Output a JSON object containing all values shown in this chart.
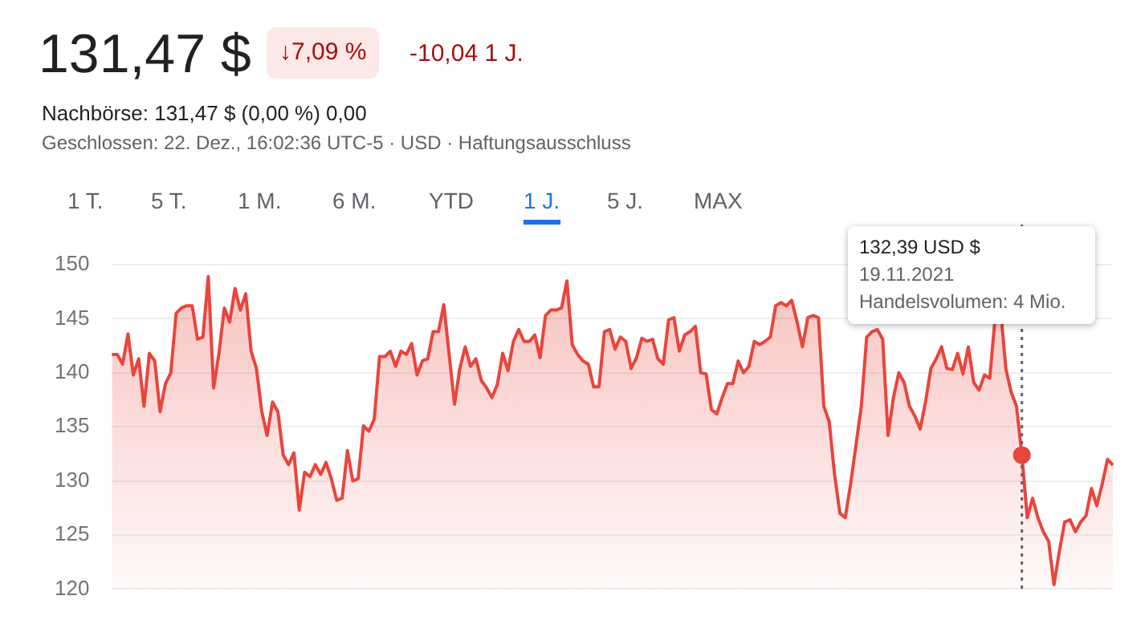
{
  "chart_data": {
    "type": "area",
    "title": "131,47 $",
    "subtitle": "Nachbörse: 131,47 $ (0,00 %) 0,00",
    "annotations": [
      "↓7,09 %",
      "-10,04 1 J.",
      "Geschlossen: 22. Dez., 16:02:36 UTC-5 · USD · Haftungsausschluss",
      "1 T.",
      "5 T.",
      "1 M.",
      "6 M.",
      "YTD",
      "1 J.",
      "5 J.",
      "MAX",
      "132,39 USD $",
      "19.11.2021",
      "Handelsvolumen: 4 Mio."
    ],
    "categories": [
      null,
      null,
      null,
      null,
      null,
      null,
      null,
      null,
      null,
      null,
      null,
      null,
      null,
      null,
      null,
      null,
      null,
      null,
      null,
      null,
      null,
      null,
      null,
      null,
      null,
      null,
      null,
      null,
      null,
      null,
      null,
      null,
      null,
      null,
      null,
      null,
      null,
      null,
      null,
      null,
      null,
      null,
      null,
      null,
      null,
      null,
      null,
      null,
      null,
      null,
      null,
      null,
      null,
      null,
      null,
      null,
      null,
      null,
      null,
      null,
      null,
      null,
      null,
      null,
      null,
      null,
      null,
      null,
      null,
      null,
      null,
      null,
      null,
      null,
      null,
      null,
      null,
      null,
      null,
      null,
      null,
      null,
      null,
      null,
      null,
      null,
      null,
      null,
      null,
      null,
      null,
      null,
      null,
      null,
      null,
      null,
      null,
      null,
      null,
      null,
      null,
      null,
      null,
      null,
      null,
      null,
      null,
      null,
      null,
      null,
      null,
      null,
      null,
      null,
      null,
      null,
      null,
      null,
      null,
      null,
      null,
      null,
      null,
      null,
      null,
      null,
      null,
      null,
      null,
      null,
      null,
      null,
      null,
      null,
      null,
      null,
      null,
      null,
      null,
      null,
      null,
      null,
      null,
      null,
      null,
      null,
      null,
      null,
      null,
      null,
      null,
      null,
      null,
      null,
      null,
      null,
      null,
      null,
      null,
      null,
      null,
      null,
      null,
      null,
      null,
      null,
      null,
      null,
      null,
      null,
      null,
      null,
      null,
      null,
      null,
      null,
      null,
      null,
      null,
      null,
      null,
      null,
      null,
      null,
      null,
      null,
      null,
      null
    ],
    "series": [
      {
        "color": "#e8453c",
        "values": [
          141.7,
          141.7,
          140.8,
          143.6,
          139.8,
          141.3,
          136.9,
          141.8,
          141.1,
          136.4,
          139.0,
          140.0,
          145.5,
          146.0,
          146.2,
          146.2,
          143.1,
          143.3,
          148.9,
          138.6,
          141.8,
          146.0,
          144.7,
          147.8,
          145.8,
          147.3,
          142.0,
          140.4,
          136.4,
          134.2,
          137.3,
          136.4,
          132.4,
          131.5,
          132.6,
          127.3,
          130.8,
          130.4,
          131.5,
          130.6,
          131.7,
          130.2,
          128.2,
          128.4,
          132.8,
          130.0,
          130.2,
          135.1,
          134.6,
          135.7,
          141.5,
          141.5,
          142.0,
          140.6,
          142.0,
          141.7,
          142.7,
          139.8,
          141.1,
          141.3,
          143.8,
          143.8,
          146.3,
          141.7,
          137.1,
          140.4,
          142.4,
          140.6,
          141.3,
          139.3,
          138.6,
          137.7,
          138.9,
          141.8,
          140.2,
          142.9,
          144.0,
          142.9,
          142.9,
          143.5,
          141.4,
          145.3,
          145.8,
          145.8,
          146.0,
          148.5,
          142.6,
          141.7,
          141.1,
          140.8,
          138.7,
          138.7,
          143.8,
          144.0,
          142.2,
          143.3,
          142.9,
          140.4,
          141.4,
          143.2,
          142.9,
          143.1,
          141.3,
          140.8,
          144.9,
          145.1,
          142.0,
          143.5,
          143.8,
          144.3,
          140.0,
          139.9,
          136.6,
          136.2,
          137.7,
          139.0,
          139.0,
          141.1,
          140.0,
          140.6,
          142.9,
          142.6,
          142.9,
          143.3,
          146.2,
          146.5,
          146.2,
          146.7,
          144.7,
          142.4,
          145.1,
          145.3,
          145.1,
          136.9,
          135.5,
          130.6,
          127.0,
          126.6,
          129.7,
          133.3,
          136.9,
          143.3,
          143.8,
          144.0,
          143.1,
          134.2,
          137.7,
          140.0,
          139.1,
          136.9,
          136.0,
          134.8,
          137.3,
          140.4,
          141.3,
          142.4,
          140.4,
          140.3,
          141.8,
          139.9,
          142.4,
          139.1,
          138.4,
          139.8,
          139.5,
          145.1,
          146.0,
          140.4,
          138.2,
          136.9,
          132.39,
          126.6,
          128.4,
          126.6,
          125.3,
          124.4,
          120.4,
          123.5,
          126.2,
          126.4,
          125.3,
          126.2,
          126.8,
          129.3,
          127.7,
          129.7,
          132.0,
          131.47
        ]
      },
      {
        "type": "scatter",
        "color": "#e8453c",
        "values": [
          null,
          null,
          null,
          null,
          null,
          null,
          null,
          null,
          null,
          null,
          null,
          null,
          null,
          null,
          null,
          null,
          null,
          null,
          null,
          null,
          null,
          null,
          null,
          null,
          null,
          null,
          null,
          null,
          null,
          null,
          null,
          null,
          null,
          null,
          null,
          null,
          null,
          null,
          null,
          null,
          null,
          null,
          null,
          null,
          null,
          null,
          null,
          null,
          null,
          null,
          null,
          null,
          null,
          null,
          null,
          null,
          null,
          null,
          null,
          null,
          null,
          null,
          null,
          null,
          null,
          null,
          null,
          null,
          null,
          null,
          null,
          null,
          null,
          null,
          null,
          null,
          null,
          null,
          null,
          null,
          null,
          null,
          null,
          null,
          null,
          null,
          null,
          null,
          null,
          null,
          null,
          null,
          null,
          null,
          null,
          null,
          null,
          null,
          null,
          null,
          null,
          null,
          null,
          null,
          null,
          null,
          null,
          null,
          null,
          null,
          null,
          null,
          null,
          null,
          null,
          null,
          null,
          null,
          null,
          null,
          null,
          null,
          null,
          null,
          null,
          null,
          null,
          null,
          null,
          null,
          null,
          null,
          null,
          null,
          null,
          null,
          null,
          null,
          null,
          null,
          null,
          null,
          null,
          null,
          null,
          null,
          null,
          null,
          null,
          null,
          null,
          null,
          null,
          null,
          null,
          null,
          null,
          null,
          null,
          null,
          null,
          null,
          null,
          null,
          null,
          null,
          null,
          null,
          null,
          null,
          132.39,
          null,
          null,
          null,
          null,
          null,
          null,
          null,
          null,
          null,
          null,
          null,
          null,
          null,
          null,
          null,
          null,
          null
        ]
      }
    ],
    "ylim": [
      120,
      150
    ],
    "yticks": [
      120,
      125,
      130,
      135,
      140,
      145,
      150
    ],
    "grid": "y",
    "legend": false,
    "line_style": "solid"
  }
}
